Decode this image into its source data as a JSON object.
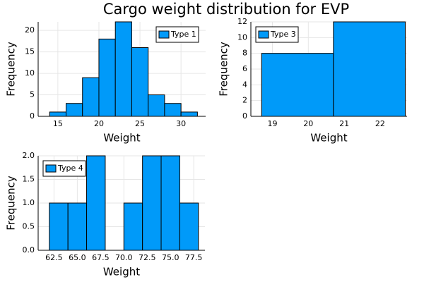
{
  "title": "Cargo weight distribution for EVP",
  "chart_data": [
    {
      "type": "histogram",
      "name": "Type 1",
      "color": "#009af9",
      "xlabel": "Weight",
      "ylabel": "Frequency",
      "bins": [
        14,
        16,
        18,
        20,
        22,
        24,
        26,
        28,
        30,
        32
      ],
      "values": [
        1,
        3,
        9,
        18,
        22,
        16,
        5,
        3,
        1
      ],
      "xlim": [
        12.6,
        33
      ],
      "ylim": [
        0,
        22
      ],
      "xticks": [
        15,
        20,
        25,
        30
      ],
      "yticks": [
        0,
        5,
        10,
        15,
        20
      ],
      "grid": true,
      "legend": "top-right"
    },
    {
      "type": "histogram",
      "name": "Type 3",
      "color": "#009af9",
      "xlabel": "Weight",
      "ylabel": "Frequency",
      "bins": [
        18.7,
        20.7,
        22.7
      ],
      "values": [
        8,
        12
      ],
      "xlim": [
        18.4,
        22.75
      ],
      "ylim": [
        0,
        12
      ],
      "xticks": [
        19,
        20,
        21,
        22
      ],
      "yticks": [
        0,
        2,
        4,
        6,
        8,
        10,
        12
      ],
      "grid": true,
      "legend": "top-left"
    },
    {
      "type": "histogram",
      "name": "Type 4",
      "color": "#009af9",
      "xlabel": "Weight",
      "ylabel": "Frequency",
      "bins": [
        62,
        64,
        66,
        68,
        70,
        72,
        74,
        76,
        78
      ],
      "values": [
        1,
        1,
        2,
        0,
        1,
        2,
        2,
        1
      ],
      "xlim": [
        60.8,
        78.7
      ],
      "ylim": [
        0,
        2
      ],
      "xticks": [
        62.5,
        {
          "value": 65,
          "label": "65.0"
        },
        67.5,
        {
          "value": 70,
          "label": "70.0"
        },
        72.5,
        {
          "value": 75,
          "label": "75.0"
        },
        77.5
      ],
      "yticks": [
        {
          "value": 0,
          "label": "0.0"
        },
        {
          "value": 0.5,
          "label": "0.5"
        },
        {
          "value": 1,
          "label": "1.0"
        },
        {
          "value": 1.5,
          "label": "1.5"
        },
        {
          "value": 2,
          "label": "2.0"
        }
      ],
      "grid": true,
      "legend": "top-left"
    }
  ]
}
